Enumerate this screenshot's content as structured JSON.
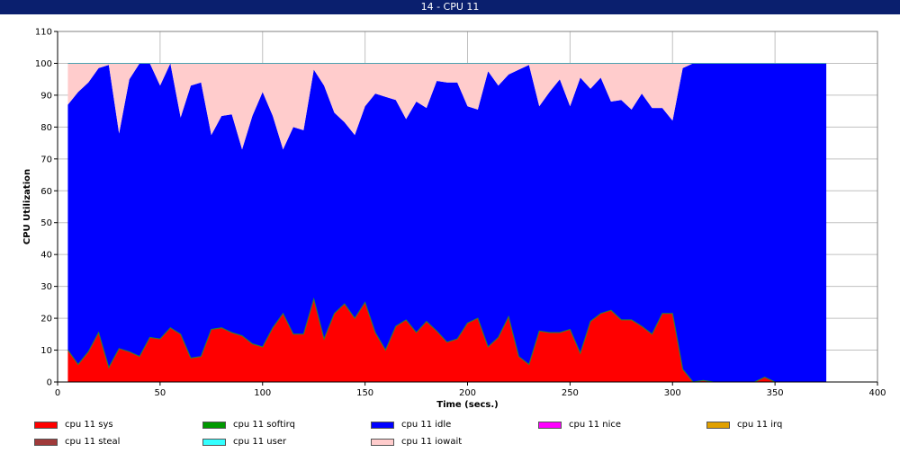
{
  "window": {
    "title": "14 - CPU 11"
  },
  "chart_data": {
    "type": "area",
    "stacked": true,
    "xlabel": "Time (secs.)",
    "ylabel": "CPU Utilization",
    "xlim": [
      0,
      400
    ],
    "ylim": [
      0,
      110
    ],
    "xticks": [
      0,
      50,
      100,
      150,
      200,
      250,
      300,
      350,
      400
    ],
    "yticks": [
      0,
      10,
      20,
      30,
      40,
      50,
      60,
      70,
      80,
      90,
      100,
      110
    ],
    "grid": true,
    "legend_position": "bottom",
    "x": [
      5,
      10,
      15,
      20,
      25,
      30,
      35,
      40,
      45,
      50,
      55,
      60,
      65,
      70,
      75,
      80,
      85,
      90,
      95,
      100,
      105,
      110,
      115,
      120,
      125,
      130,
      135,
      140,
      145,
      150,
      155,
      160,
      165,
      170,
      175,
      180,
      185,
      190,
      195,
      200,
      205,
      210,
      215,
      220,
      225,
      230,
      235,
      240,
      245,
      250,
      255,
      260,
      265,
      270,
      275,
      280,
      285,
      290,
      295,
      300,
      305,
      310,
      315,
      320,
      325,
      330,
      335,
      340,
      345,
      350,
      355,
      360,
      365,
      370,
      375
    ],
    "series": [
      {
        "name": "cpu 11 sys",
        "color": "#ff0000",
        "values": [
          10,
          5.5,
          9.5,
          15.5,
          4.5,
          10.5,
          9.5,
          8,
          14,
          13.5,
          17,
          15,
          7.5,
          8,
          16.5,
          17,
          15.5,
          14.5,
          12,
          11,
          17,
          21.5,
          15,
          15,
          26,
          13.5,
          21.5,
          24.5,
          20,
          25,
          15.5,
          10,
          17.5,
          19.5,
          15.5,
          19,
          16,
          12.5,
          13.5,
          18.5,
          20,
          11,
          14,
          20.5,
          8,
          5.5,
          16,
          15.5,
          15.5,
          16.5,
          9,
          19,
          21.5,
          22.5,
          19.5,
          19.5,
          17.5,
          15,
          21.5,
          21.5,
          4,
          0,
          0.5,
          0,
          0,
          0,
          0,
          0,
          1.5,
          0,
          0,
          0,
          0,
          0,
          0
        ]
      },
      {
        "name": "cpu 11 softirq",
        "color": "#009900",
        "values": [
          0,
          0,
          0,
          0,
          0,
          0,
          0,
          0,
          0,
          0,
          0,
          0,
          0,
          0,
          0,
          0,
          0,
          0,
          0,
          0,
          0,
          0,
          0,
          0,
          0,
          0,
          0,
          0,
          0,
          0,
          0,
          0,
          0,
          0,
          0,
          0,
          0,
          0,
          0,
          0,
          0,
          0,
          0,
          0,
          0,
          0,
          0,
          0,
          0,
          0,
          0,
          0,
          0,
          0,
          0,
          0,
          0,
          0,
          0,
          0,
          0,
          0,
          0,
          0,
          0,
          0,
          0,
          0,
          0,
          0,
          0,
          0,
          0,
          0,
          0
        ]
      },
      {
        "name": "cpu 11 idle",
        "color": "#0000ff",
        "values": [
          77,
          85.5,
          84.5,
          83,
          95,
          67.5,
          85.5,
          92,
          86,
          79.5,
          83,
          68,
          85.5,
          86,
          61,
          66.5,
          68.5,
          58.5,
          71.5,
          80,
          66.5,
          51.5,
          65,
          64,
          72,
          79.5,
          63,
          57,
          57.5,
          61.5,
          75,
          79.5,
          71,
          63,
          72.5,
          67,
          78.5,
          81.5,
          80.5,
          68,
          65.5,
          86.5,
          79,
          76,
          90,
          94,
          70.5,
          75.5,
          79.5,
          70,
          86.5,
          73,
          74,
          65.5,
          69,
          66,
          73,
          71,
          64.5,
          60.5,
          94.5,
          100,
          99.5,
          100,
          100,
          100,
          100,
          100,
          98.5,
          100,
          100,
          100,
          100,
          100,
          100
        ]
      },
      {
        "name": "cpu 11 nice",
        "color": "#ff00ff",
        "values": [
          0,
          0,
          0,
          0,
          0,
          0,
          0,
          0,
          0,
          0,
          0,
          0,
          0,
          0,
          0,
          0,
          0,
          0,
          0,
          0,
          0,
          0,
          0,
          0,
          0,
          0,
          0,
          0,
          0,
          0,
          0,
          0,
          0,
          0,
          0,
          0,
          0,
          0,
          0,
          0,
          0,
          0,
          0,
          0,
          0,
          0,
          0,
          0,
          0,
          0,
          0,
          0,
          0,
          0,
          0,
          0,
          0,
          0,
          0,
          0,
          0,
          0,
          0,
          0,
          0,
          0,
          0,
          0,
          0,
          0,
          0,
          0,
          0,
          0,
          0
        ]
      },
      {
        "name": "cpu 11 irq",
        "color": "#e0a000",
        "values": [
          0,
          0,
          0,
          0,
          0,
          0,
          0,
          0,
          0,
          0,
          0,
          0,
          0,
          0,
          0,
          0,
          0,
          0,
          0,
          0,
          0,
          0,
          0,
          0,
          0,
          0,
          0,
          0,
          0,
          0,
          0,
          0,
          0,
          0,
          0,
          0,
          0,
          0,
          0,
          0,
          0,
          0,
          0,
          0,
          0,
          0,
          0,
          0,
          0,
          0,
          0,
          0,
          0,
          0,
          0,
          0,
          0,
          0,
          0,
          0,
          0,
          0,
          0,
          0,
          0,
          0,
          0,
          0,
          0,
          0,
          0,
          0,
          0,
          0,
          0
        ]
      },
      {
        "name": "cpu 11 steal",
        "color": "#a03a3a",
        "values": [
          0,
          0,
          0,
          0,
          0,
          0,
          0,
          0,
          0,
          0,
          0,
          0,
          0,
          0,
          0,
          0,
          0,
          0,
          0,
          0,
          0,
          0,
          0,
          0,
          0,
          0,
          0,
          0,
          0,
          0,
          0,
          0,
          0,
          0,
          0,
          0,
          0,
          0,
          0,
          0,
          0,
          0,
          0,
          0,
          0,
          0,
          0,
          0,
          0,
          0,
          0,
          0,
          0,
          0,
          0,
          0,
          0,
          0,
          0,
          0,
          0,
          0,
          0,
          0,
          0,
          0,
          0,
          0,
          0,
          0,
          0,
          0,
          0,
          0,
          0
        ]
      },
      {
        "name": "cpu 11 user",
        "color": "#33ffff",
        "values": [
          0,
          0,
          0,
          0,
          0,
          0,
          0,
          0,
          0,
          0,
          0,
          0,
          0,
          0,
          0,
          0,
          0,
          0,
          0,
          0,
          0,
          0,
          0,
          0,
          0,
          0,
          0,
          0,
          0,
          0,
          0,
          0,
          0,
          0,
          0,
          0,
          0,
          0,
          0,
          0,
          0,
          0,
          0,
          0,
          0,
          0,
          0,
          0,
          0,
          0,
          0,
          0,
          0,
          0,
          0,
          0,
          0,
          0,
          0,
          0,
          0,
          0,
          0,
          0,
          0,
          0,
          0,
          0,
          0,
          0,
          0,
          0,
          0,
          0,
          0
        ]
      },
      {
        "name": "cpu 11 iowait",
        "color": "#ffcccc",
        "values": [
          13,
          9,
          6,
          1.5,
          0.5,
          22,
          5,
          0,
          0,
          7,
          0,
          17,
          7,
          6,
          22.5,
          16.5,
          16,
          27,
          16.5,
          9,
          16.5,
          27,
          20,
          21,
          2,
          7,
          15.5,
          18.5,
          22.5,
          13.5,
          9.5,
          10.5,
          11.5,
          17.5,
          12,
          14,
          5.5,
          6,
          6,
          13.5,
          14.5,
          2.5,
          7,
          3.5,
          2,
          0.5,
          13.5,
          9,
          5,
          13.5,
          4.5,
          8,
          4.5,
          12,
          11.5,
          14.5,
          9.5,
          14,
          14,
          18,
          1.5,
          0,
          0,
          0,
          0,
          0,
          0,
          0,
          0,
          0,
          0,
          0,
          0,
          0,
          0
        ]
      }
    ]
  }
}
